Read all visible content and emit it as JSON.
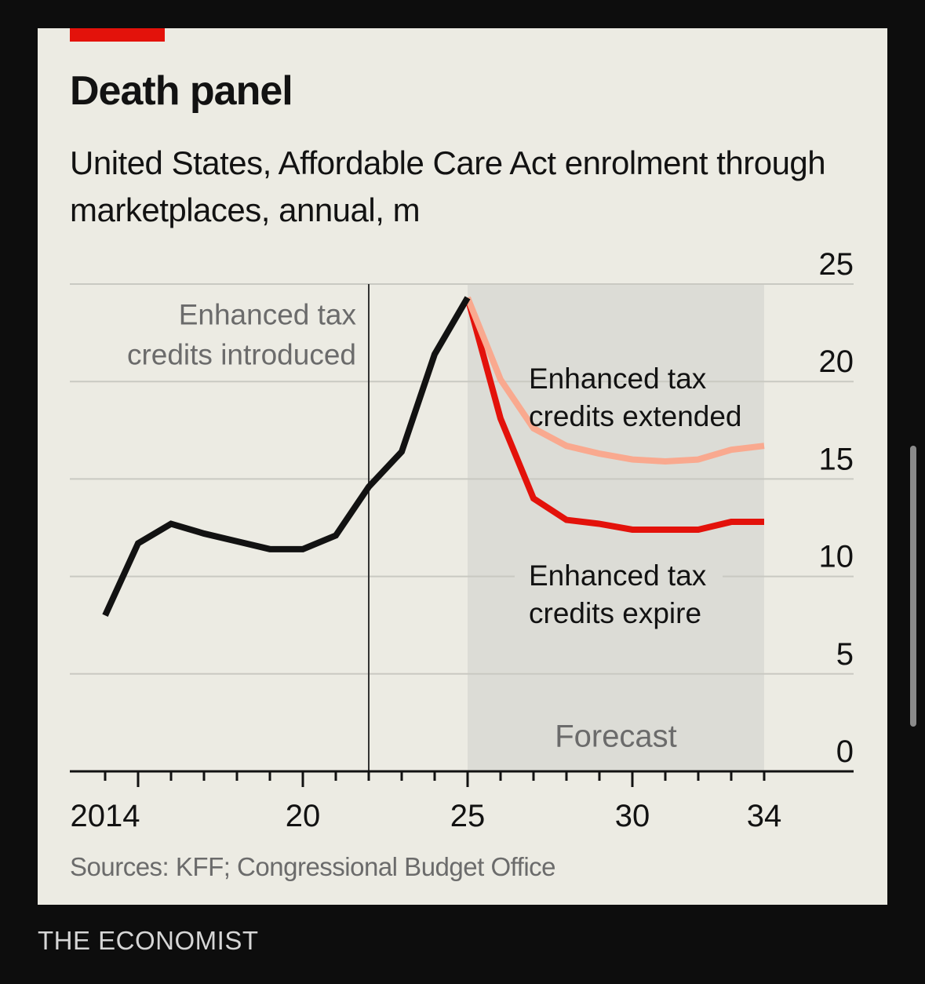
{
  "brand": "THE ECONOMIST",
  "chart_data": {
    "type": "line",
    "title": "Death panel",
    "subtitle": "United States, Affordable Care Act enrolment through marketplaces, annual, m",
    "source": "Sources: KFF; Congressional Budget Office",
    "ylim": [
      0,
      25
    ],
    "yticks": [
      0,
      5,
      10,
      15,
      20,
      25
    ],
    "xlim": [
      2014,
      2034
    ],
    "xtick_labels": [
      {
        "x": 2014,
        "label": "2014"
      },
      {
        "x": 2020,
        "label": "20"
      },
      {
        "x": 2025,
        "label": "25"
      },
      {
        "x": 2030,
        "label": "30"
      },
      {
        "x": 2034,
        "label": "34"
      }
    ],
    "grid": true,
    "forecast_region": {
      "from": 2025,
      "to": 2034,
      "label": "Forecast"
    },
    "marker_line": {
      "x": 2022,
      "label": [
        "Enhanced tax",
        "credits introduced"
      ]
    },
    "series": [
      {
        "name": "Actual",
        "color": "#121212",
        "x": [
          2014,
          2015,
          2016,
          2017,
          2018,
          2019,
          2020,
          2021,
          2022,
          2023,
          2024,
          2025
        ],
        "values": [
          8.0,
          11.7,
          12.7,
          12.2,
          11.8,
          11.4,
          11.4,
          12.1,
          14.6,
          16.4,
          21.4,
          24.3
        ]
      },
      {
        "name": "Enhanced tax credits extended",
        "label": [
          "Enhanced tax",
          "credits extended"
        ],
        "color": "#f9a98f",
        "x": [
          2025,
          2026,
          2027,
          2028,
          2029,
          2030,
          2031,
          2032,
          2033,
          2034
        ],
        "values": [
          24.3,
          20.1,
          17.6,
          16.7,
          16.3,
          16.0,
          15.9,
          16.0,
          16.5,
          16.7
        ]
      },
      {
        "name": "Enhanced tax credits expire",
        "label": [
          "Enhanced tax",
          "credits expire"
        ],
        "color": "#e3120b",
        "x": [
          2025,
          2026,
          2027,
          2028,
          2029,
          2030,
          2031,
          2032,
          2033,
          2034
        ],
        "values": [
          24.3,
          18.1,
          14.0,
          12.9,
          12.7,
          12.4,
          12.4,
          12.4,
          12.8,
          12.8
        ]
      }
    ]
  }
}
